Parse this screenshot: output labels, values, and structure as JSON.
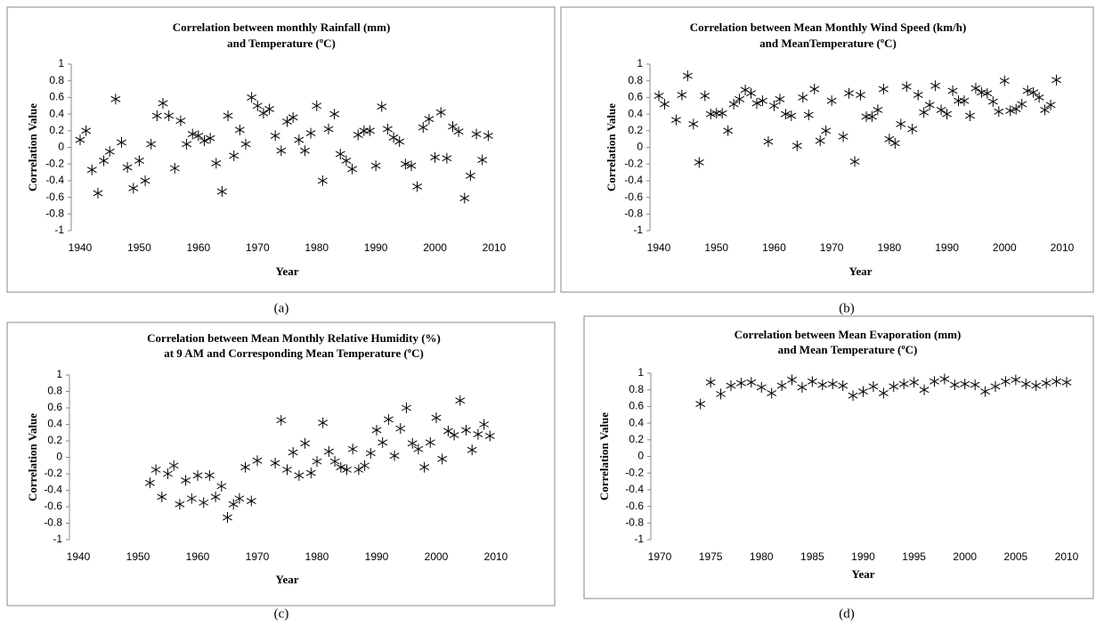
{
  "chart_data": [
    {
      "type": "scatter",
      "marker": "asterisk",
      "color": "#000000",
      "title": [
        "Correlation between  monthly Rainfall (mm)",
        "and Temperature (ºC)"
      ],
      "xlabel": "Year",
      "ylabel": "Correlation Value",
      "caption": "(a)",
      "xlim": [
        1940,
        2010
      ],
      "xticks": [
        1940,
        1950,
        1960,
        1970,
        1980,
        1990,
        2000,
        2010
      ],
      "ylim": [
        -1,
        1
      ],
      "yticks": [
        -1,
        -0.8,
        -0.6,
        -0.4,
        -0.2,
        0,
        0.2,
        0.4,
        0.6,
        0.8,
        1
      ],
      "x": [
        1940,
        1941,
        1942,
        1943,
        1944,
        1945,
        1946,
        1947,
        1948,
        1949,
        1950,
        1951,
        1952,
        1953,
        1954,
        1955,
        1956,
        1957,
        1958,
        1959,
        1960,
        1961,
        1962,
        1963,
        1964,
        1965,
        1966,
        1967,
        1968,
        1969,
        1970,
        1971,
        1972,
        1973,
        1974,
        1975,
        1976,
        1977,
        1978,
        1979,
        1980,
        1981,
        1982,
        1983,
        1984,
        1985,
        1986,
        1987,
        1988,
        1989,
        1990,
        1991,
        1992,
        1993,
        1994,
        1995,
        1996,
        1997,
        1998,
        1999,
        2000,
        2001,
        2002,
        2003,
        2004,
        2005,
        2006,
        2007,
        2008,
        2009
      ],
      "values": [
        0.09,
        0.2,
        -0.27,
        -0.55,
        -0.16,
        -0.05,
        0.58,
        0.06,
        -0.24,
        -0.49,
        -0.16,
        -0.4,
        0.04,
        0.38,
        0.53,
        0.38,
        -0.25,
        0.32,
        0.04,
        0.16,
        0.14,
        0.08,
        0.11,
        -0.19,
        -0.53,
        0.38,
        -0.1,
        0.21,
        0.04,
        0.6,
        0.5,
        0.41,
        0.46,
        0.14,
        -0.04,
        0.31,
        0.36,
        0.09,
        -0.04,
        0.17,
        0.5,
        -0.4,
        0.22,
        0.4,
        -0.08,
        -0.16,
        -0.26,
        0.15,
        0.2,
        0.2,
        -0.22,
        0.49,
        0.22,
        0.12,
        0.07,
        -0.2,
        -0.22,
        -0.47,
        0.24,
        0.34,
        -0.12,
        0.42,
        -0.13,
        0.25,
        0.19,
        -0.61,
        -0.34,
        0.16,
        -0.15,
        0.14
      ]
    },
    {
      "type": "scatter",
      "marker": "asterisk",
      "color": "#000000",
      "title": [
        "Correlation between Mean Monthly Wind Speed (km/h)",
        "and  MeanTemperature (ºC)"
      ],
      "xlabel": "Year",
      "ylabel": "Correlation Value",
      "caption": "(b)",
      "xlim": [
        1940,
        2010
      ],
      "xticks": [
        1940,
        1950,
        1960,
        1970,
        1980,
        1990,
        2000,
        2010
      ],
      "ylim": [
        -1,
        1
      ],
      "yticks": [
        -1,
        -0.8,
        -0.6,
        -0.4,
        -0.2,
        0,
        0.2,
        0.4,
        0.6,
        0.8,
        1
      ],
      "x": [
        1940,
        1941,
        1943,
        1944,
        1945,
        1946,
        1947,
        1948,
        1949,
        1950,
        1951,
        1952,
        1953,
        1954,
        1955,
        1956,
        1957,
        1958,
        1959,
        1960,
        1961,
        1962,
        1963,
        1964,
        1965,
        1966,
        1967,
        1968,
        1969,
        1970,
        1972,
        1973,
        1974,
        1975,
        1976,
        1977,
        1978,
        1979,
        1980,
        1981,
        1982,
        1983,
        1984,
        1985,
        1986,
        1987,
        1988,
        1989,
        1990,
        1991,
        1992,
        1993,
        1994,
        1995,
        1996,
        1997,
        1998,
        1999,
        2000,
        2001,
        2002,
        2003,
        2004,
        2005,
        2006,
        2007,
        2008,
        2009
      ],
      "values": [
        0.62,
        0.52,
        0.33,
        0.63,
        0.86,
        0.28,
        -0.18,
        0.62,
        0.4,
        0.41,
        0.41,
        0.2,
        0.52,
        0.58,
        0.69,
        0.65,
        0.53,
        0.56,
        0.07,
        0.5,
        0.58,
        0.4,
        0.38,
        0.02,
        0.6,
        0.39,
        0.7,
        0.08,
        0.2,
        0.56,
        0.13,
        0.65,
        -0.17,
        0.63,
        0.37,
        0.37,
        0.45,
        0.7,
        0.1,
        0.05,
        0.28,
        0.73,
        0.22,
        0.63,
        0.42,
        0.51,
        0.74,
        0.45,
        0.4,
        0.68,
        0.56,
        0.56,
        0.38,
        0.71,
        0.66,
        0.65,
        0.55,
        0.43,
        0.8,
        0.44,
        0.46,
        0.52,
        0.68,
        0.66,
        0.6,
        0.45,
        0.51,
        0.81
      ]
    },
    {
      "type": "scatter",
      "marker": "asterisk",
      "color": "#000000",
      "title": [
        "Correlation between Mean Monthly Relative Humidity (%)",
        "at 9 AM and  Corresponding Mean Temperature (ºC)"
      ],
      "xlabel": "Year",
      "ylabel": "Correlation Value",
      "caption": "(c)",
      "xlim": [
        1940,
        2010
      ],
      "xticks": [
        1940,
        1950,
        1960,
        1970,
        1980,
        1990,
        2000,
        2010
      ],
      "ylim": [
        -1,
        1
      ],
      "yticks": [
        -1,
        -0.8,
        -0.6,
        -0.4,
        -0.2,
        0,
        0.2,
        0.4,
        0.6,
        0.8,
        1
      ],
      "x": [
        1952,
        1953,
        1954,
        1955,
        1956,
        1957,
        1958,
        1959,
        1960,
        1961,
        1962,
        1963,
        1964,
        1965,
        1966,
        1967,
        1968,
        1969,
        1970,
        1973,
        1974,
        1975,
        1976,
        1977,
        1978,
        1979,
        1980,
        1981,
        1982,
        1983,
        1984,
        1985,
        1986,
        1987,
        1988,
        1989,
        1990,
        1991,
        1992,
        1993,
        1994,
        1995,
        1996,
        1997,
        1998,
        1999,
        2000,
        2001,
        2002,
        2003,
        2004,
        2005,
        2006,
        2007,
        2008,
        2009
      ],
      "values": [
        -0.31,
        -0.15,
        -0.48,
        -0.2,
        -0.1,
        -0.57,
        -0.28,
        -0.5,
        -0.22,
        -0.55,
        -0.22,
        -0.48,
        -0.35,
        -0.73,
        -0.57,
        -0.5,
        -0.12,
        -0.53,
        -0.04,
        -0.07,
        0.45,
        -0.15,
        0.06,
        -0.22,
        0.17,
        -0.19,
        -0.05,
        0.42,
        0.07,
        -0.05,
        -0.12,
        -0.15,
        0.1,
        -0.15,
        -0.1,
        0.05,
        0.33,
        0.18,
        0.46,
        0.02,
        0.35,
        0.6,
        0.17,
        0.1,
        -0.12,
        0.18,
        0.48,
        -0.02,
        0.32,
        0.27,
        0.69,
        0.33,
        0.09,
        0.28,
        0.4,
        0.26
      ]
    },
    {
      "type": "scatter",
      "marker": "asterisk",
      "color": "#000000",
      "title": [
        "Correlation between Mean Evaporation (mm)",
        "and  Mean Temperature (ºC)"
      ],
      "xlabel": "Year",
      "ylabel": "Correlation  Value",
      "caption": "(d)",
      "xlim": [
        1970,
        2010
      ],
      "xticks": [
        1970,
        1975,
        1980,
        1985,
        1990,
        1995,
        2000,
        2005,
        2010
      ],
      "ylim": [
        -1,
        1
      ],
      "yticks": [
        -1,
        -0.8,
        -0.6,
        -0.4,
        -0.2,
        0,
        0.2,
        0.4,
        0.6,
        0.8,
        1
      ],
      "x": [
        1974,
        1975,
        1976,
        1977,
        1978,
        1979,
        1980,
        1981,
        1982,
        1983,
        1984,
        1985,
        1986,
        1987,
        1988,
        1989,
        1990,
        1991,
        1992,
        1993,
        1994,
        1995,
        1996,
        1997,
        1998,
        1999,
        2000,
        2001,
        2002,
        2003,
        2004,
        2005,
        2006,
        2007,
        2008,
        2009,
        2010
      ],
      "values": [
        0.63,
        0.89,
        0.75,
        0.85,
        0.88,
        0.89,
        0.83,
        0.76,
        0.85,
        0.92,
        0.83,
        0.9,
        0.86,
        0.87,
        0.85,
        0.73,
        0.78,
        0.84,
        0.76,
        0.84,
        0.87,
        0.89,
        0.8,
        0.9,
        0.93,
        0.86,
        0.87,
        0.86,
        0.78,
        0.84,
        0.9,
        0.92,
        0.87,
        0.85,
        0.88,
        0.9,
        0.89
      ]
    }
  ]
}
